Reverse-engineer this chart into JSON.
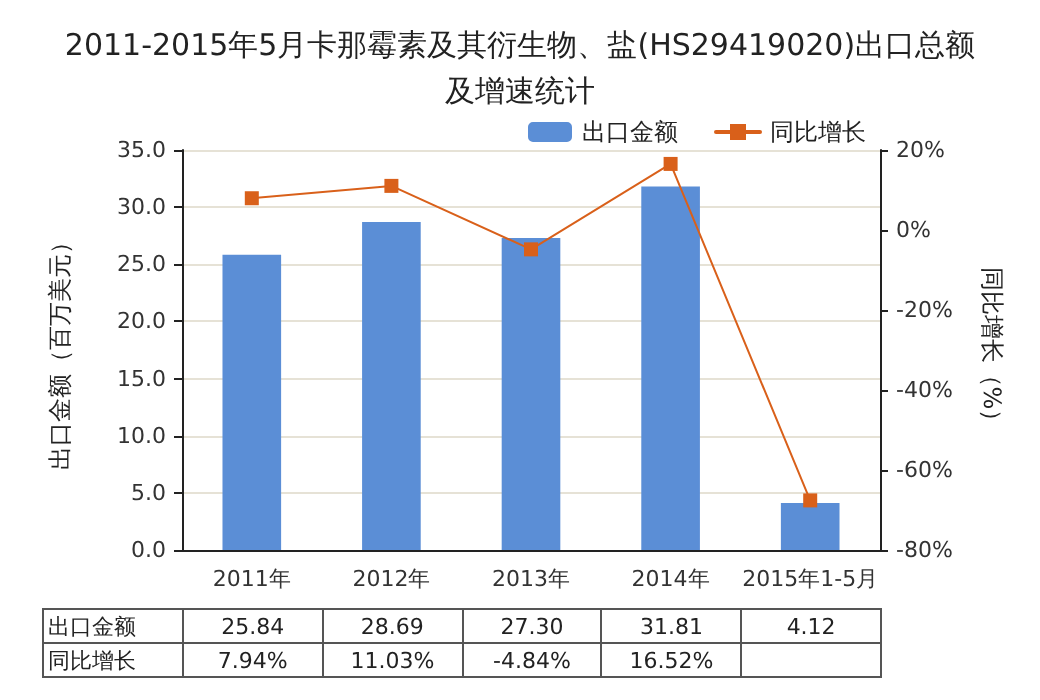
{
  "chart_data": {
    "type": "bar",
    "title": "2011-2015年5月卡那霉素及其衍生物、盐(HS29419020)出口总额及增速统计",
    "categories": [
      "2011年",
      "2012年",
      "2013年",
      "2014年",
      "2015年1-5月"
    ],
    "ylabel": "出口金额（百万美元）",
    "y2label": "同比增长（%）",
    "ylim": [
      0,
      35
    ],
    "yticks": [
      {
        "value": 0,
        "label": "0.0"
      },
      {
        "value": 5,
        "label": "5.0"
      },
      {
        "value": 10,
        "label": "10.0"
      },
      {
        "value": 15,
        "label": "15.0"
      },
      {
        "value": 20,
        "label": "20.0"
      },
      {
        "value": 25,
        "label": "25.0"
      },
      {
        "value": 30,
        "label": "30.0"
      },
      {
        "value": 35,
        "label": "35.0"
      }
    ],
    "y2lim": [
      -80,
      20
    ],
    "y2ticks": [
      {
        "value": -80,
        "label": "-80%"
      },
      {
        "value": -60,
        "label": "-60%"
      },
      {
        "value": -40,
        "label": "-40%"
      },
      {
        "value": -20,
        "label": "-20%"
      },
      {
        "value": 0,
        "label": "0%"
      },
      {
        "value": 20,
        "label": "20%"
      }
    ],
    "grid": "y",
    "legend": "top right",
    "marker": "square",
    "series": [
      {
        "name": "出口金额",
        "color": "#5b8ed6",
        "values": [
          25.84,
          28.69,
          27.3,
          31.81,
          4.12
        ],
        "value_labels": [
          "25.84",
          "28.69",
          "27.30",
          "31.81",
          "4.12"
        ]
      },
      {
        "name": "同比增长",
        "type": "line",
        "axis": "y2",
        "color": "#d9601a",
        "values": [
          7.94,
          11.03,
          -4.84,
          16.52,
          -67.6
        ],
        "value_labels": [
          "7.94%",
          "11.03%",
          "-4.84%",
          "16.52%",
          null
        ]
      }
    ]
  }
}
